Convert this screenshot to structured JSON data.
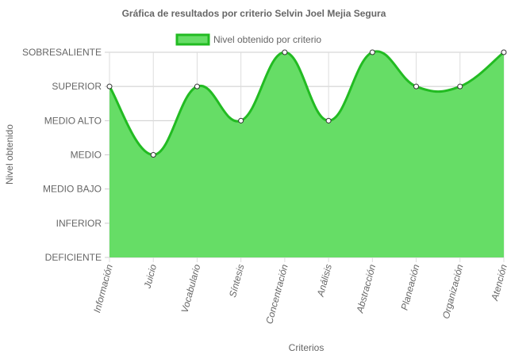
{
  "chart_data": {
    "type": "area",
    "title": "Gráfica de resultados por criterio Selvin Joel Mejia Segura",
    "xlabel": "Criterios",
    "ylabel": "Nivel obtenido",
    "y_levels": [
      "DEFICIENTE",
      "INFERIOR",
      "MEDIO BAJO",
      "MEDIO",
      "MEDIO ALTO",
      "SUPERIOR",
      "SOBRESALIENTE"
    ],
    "categories": [
      "Información",
      "Juicio",
      "Vocabulario",
      "Síntesis",
      "Concentración",
      "Análisis",
      "Abstracción",
      "Planeación",
      "Organización",
      "Atención"
    ],
    "series": [
      {
        "name": "Nivel obtenido por criterio",
        "values": [
          5,
          3,
          5,
          4,
          6,
          4,
          6,
          5,
          5,
          6
        ],
        "fill_color": "#66dd66",
        "line_color": "#22bb22"
      }
    ],
    "ylim": [
      0,
      6
    ],
    "legend_position": "top",
    "grid": true
  }
}
